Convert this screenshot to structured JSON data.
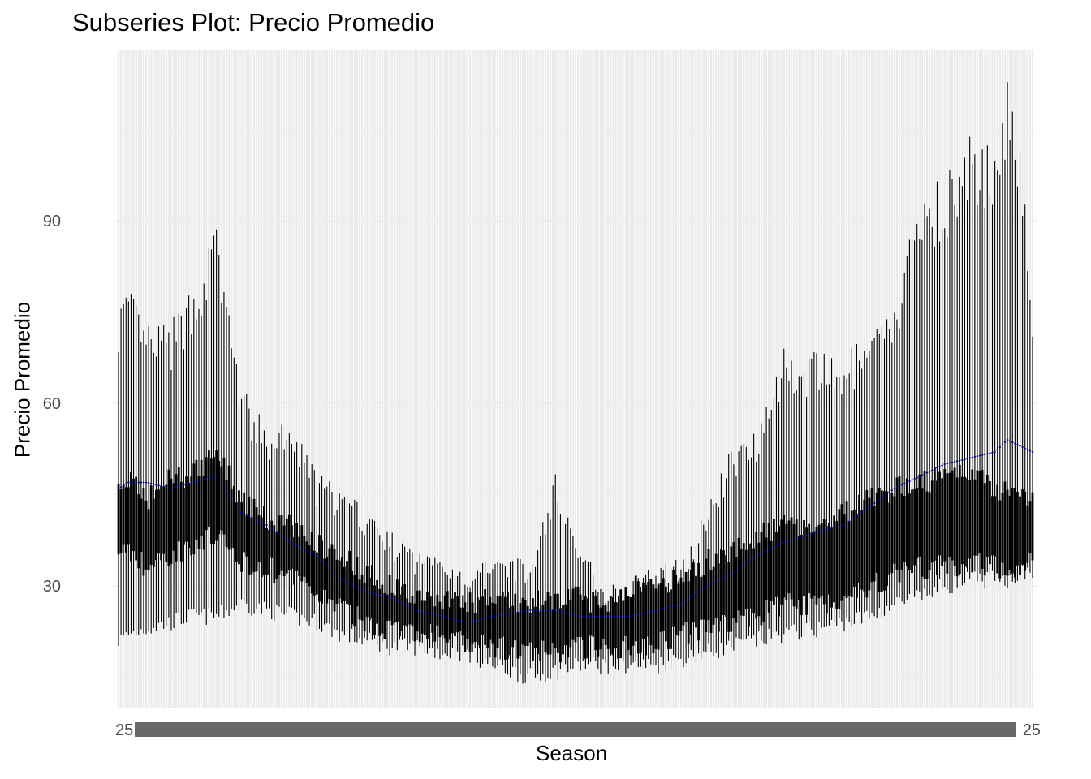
{
  "chart_data": {
    "type": "line",
    "title": "Subseries Plot: Precio Promedio",
    "xlabel": "Season",
    "ylabel": "Precio Promedio",
    "ylim": [
      10,
      118
    ],
    "y_ticks": [
      30,
      60,
      90
    ],
    "grid": true,
    "panel_background": "#ebebeb",
    "series_color": "#000000",
    "mean_color": "#00008b",
    "x_tick_label_first": "25",
    "x_tick_label_last": "25",
    "x_range": [
      1,
      365
    ],
    "anchors": {
      "x": [
        1,
        5,
        12,
        22,
        30,
        40,
        50,
        60,
        70,
        80,
        90,
        100,
        110,
        120,
        130,
        140,
        150,
        165,
        175,
        185,
        195,
        205,
        215,
        225,
        235,
        245,
        255,
        265,
        280,
        290,
        300,
        310,
        320,
        330,
        340,
        350,
        355,
        360,
        365
      ],
      "high": [
        76,
        78,
        72,
        72,
        78,
        88,
        62,
        55,
        56,
        48,
        45,
        42,
        38,
        35,
        36,
        30,
        36,
        33,
        48,
        36,
        30,
        30,
        33,
        34,
        42,
        52,
        56,
        68,
        67,
        67,
        70,
        75,
        94,
        96,
        102,
        100,
        113,
        104,
        78
      ],
      "q3": [
        45,
        48,
        44,
        48,
        48,
        52,
        44,
        41,
        40,
        37,
        35,
        32,
        30,
        28,
        28,
        27,
        28,
        27,
        28,
        28,
        27,
        30,
        30,
        31,
        34,
        36,
        38,
        40,
        40,
        42,
        44,
        46,
        47,
        48,
        49,
        46,
        46,
        45,
        44
      ],
      "mean": [
        46,
        47,
        47,
        46,
        47,
        48,
        42,
        40,
        37,
        35,
        31,
        29,
        28,
        26,
        25,
        24,
        25,
        26,
        26,
        25,
        25,
        25,
        26,
        27,
        30,
        32,
        35,
        37,
        39,
        40,
        43,
        46,
        48,
        50,
        51,
        52,
        54,
        53,
        52
      ],
      "q1": [
        36,
        36,
        33,
        35,
        37,
        38,
        34,
        33,
        31,
        29,
        26,
        24,
        23,
        22,
        22,
        20,
        20,
        19,
        19,
        20,
        20,
        20,
        21,
        22,
        23,
        24,
        25,
        27,
        27,
        28,
        30,
        32,
        33,
        33,
        34,
        33,
        33,
        33,
        35
      ],
      "low": [
        21,
        22,
        23,
        24,
        25,
        25,
        27,
        26,
        25,
        24,
        22,
        21,
        20,
        20,
        19,
        19,
        17,
        15,
        16,
        17,
        17,
        17,
        17,
        18,
        19,
        20,
        21,
        22,
        23,
        24,
        25,
        27,
        28,
        30,
        31,
        31,
        31,
        32,
        32
      ]
    }
  }
}
